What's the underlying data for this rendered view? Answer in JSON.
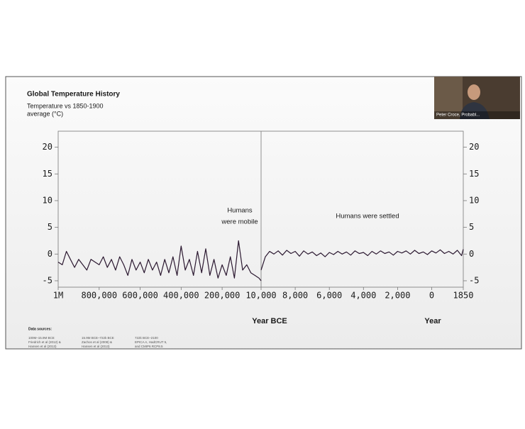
{
  "slide": {
    "title": "Global Temperature History",
    "subtitle_lines": [
      "Temperature vs 1850-1900",
      "average (°C)"
    ],
    "sources_heading": "Data sources:",
    "sources": [
      [
        "100M–15.9M BCE",
        "Friedrich et al (2012) &",
        "Hansen et al (2013)"
      ],
      [
        "15.9M BCE–722k BCE",
        "Zachos et al (2008) &",
        "Hansen et al (2013)"
      ],
      [
        "722k BCE–2100",
        "EPICA A, HadCRUT 5,",
        "and CMIP6 RCP8.5"
      ]
    ]
  },
  "video": {
    "name": "Peter Croce, Probabl..."
  },
  "chart_data": [
    {
      "type": "line",
      "xlabel": "Year BCE",
      "annotation": [
        "Humans",
        "were mobile"
      ],
      "color": "#2b1830",
      "xlim": [
        -1000000,
        -10000
      ],
      "ylim": [
        -6.2,
        23
      ],
      "yticks": [
        {
          "value": -5,
          "label": "-5"
        },
        0,
        5,
        10,
        15,
        20
      ],
      "xticks": [
        {
          "value": -1000000,
          "label": "1M"
        },
        {
          "value": -800000,
          "label": "800,000"
        },
        {
          "value": -600000,
          "label": "600,000"
        },
        {
          "value": -400000,
          "label": "400,000"
        },
        {
          "value": -200000,
          "label": "200,000"
        },
        {
          "value": -10000,
          "label": "10,000"
        }
      ],
      "x": [
        -1000000,
        -980000,
        -960000,
        -940000,
        -920000,
        -900000,
        -880000,
        -860000,
        -840000,
        -820000,
        -800000,
        -780000,
        -760000,
        -740000,
        -720000,
        -700000,
        -680000,
        -660000,
        -640000,
        -620000,
        -600000,
        -580000,
        -560000,
        -540000,
        -520000,
        -500000,
        -480000,
        -460000,
        -440000,
        -420000,
        -400000,
        -380000,
        -360000,
        -340000,
        -320000,
        -300000,
        -280000,
        -260000,
        -240000,
        -220000,
        -200000,
        -180000,
        -160000,
        -140000,
        -120000,
        -100000,
        -80000,
        -60000,
        -40000,
        -20000,
        -10000
      ],
      "values": [
        -1.5,
        -2,
        0.5,
        -1,
        -2.5,
        -1,
        -2,
        -3,
        -1,
        -1.5,
        -2,
        -0.5,
        -2.5,
        -1,
        -3,
        -0.5,
        -2,
        -4,
        -1,
        -3,
        -1.5,
        -3.5,
        -1,
        -3,
        -1.5,
        -4,
        -1,
        -3.5,
        -0.5,
        -4,
        1.5,
        -3,
        -1,
        -4,
        0.5,
        -3.5,
        1,
        -4,
        -1,
        -4.5,
        -2,
        -4,
        -0.5,
        -4.5,
        2.5,
        -3,
        -2,
        -3.5,
        -4,
        -4.5,
        -5
      ]
    },
    {
      "type": "line",
      "xlabel": "Year",
      "annotation": [
        "Humans were settled"
      ],
      "color": "#2b1830",
      "xlim": [
        -10000,
        1850
      ],
      "ylim": [
        -6.2,
        23
      ],
      "yticks": [
        {
          "value": -5,
          "label": "-5"
        },
        0,
        5,
        10,
        15,
        20
      ],
      "xticks": [
        {
          "value": -8000,
          "label": "8,000"
        },
        {
          "value": -6000,
          "label": "6,000"
        },
        {
          "value": -4000,
          "label": "4,000"
        },
        {
          "value": -2000,
          "label": "2,000"
        },
        0,
        1850
      ],
      "x": [
        -10000,
        -9750,
        -9500,
        -9250,
        -9000,
        -8750,
        -8500,
        -8250,
        -8000,
        -7750,
        -7500,
        -7250,
        -7000,
        -6750,
        -6500,
        -6250,
        -6000,
        -5750,
        -5500,
        -5250,
        -5000,
        -4750,
        -4500,
        -4250,
        -4000,
        -3750,
        -3500,
        -3250,
        -3000,
        -2750,
        -2500,
        -2250,
        -2000,
        -1750,
        -1500,
        -1250,
        -1000,
        -750,
        -500,
        -250,
        0,
        250,
        500,
        750,
        1000,
        1250,
        1500,
        1750,
        1850
      ],
      "values": [
        -3,
        -0.5,
        0.5,
        0,
        0.6,
        -0.2,
        0.7,
        0.1,
        0.5,
        -0.4,
        0.6,
        0,
        0.4,
        -0.3,
        0.2,
        -0.5,
        0.3,
        -0.1,
        0.5,
        0,
        0.4,
        -0.2,
        0.6,
        0.1,
        0.3,
        -0.3,
        0.5,
        0,
        0.6,
        0.1,
        0.4,
        -0.2,
        0.5,
        0.2,
        0.6,
        0,
        0.7,
        0.1,
        0.4,
        -0.1,
        0.6,
        0.2,
        0.8,
        0.1,
        0.5,
        0,
        0.7,
        -0.3,
        0.9
      ]
    }
  ]
}
